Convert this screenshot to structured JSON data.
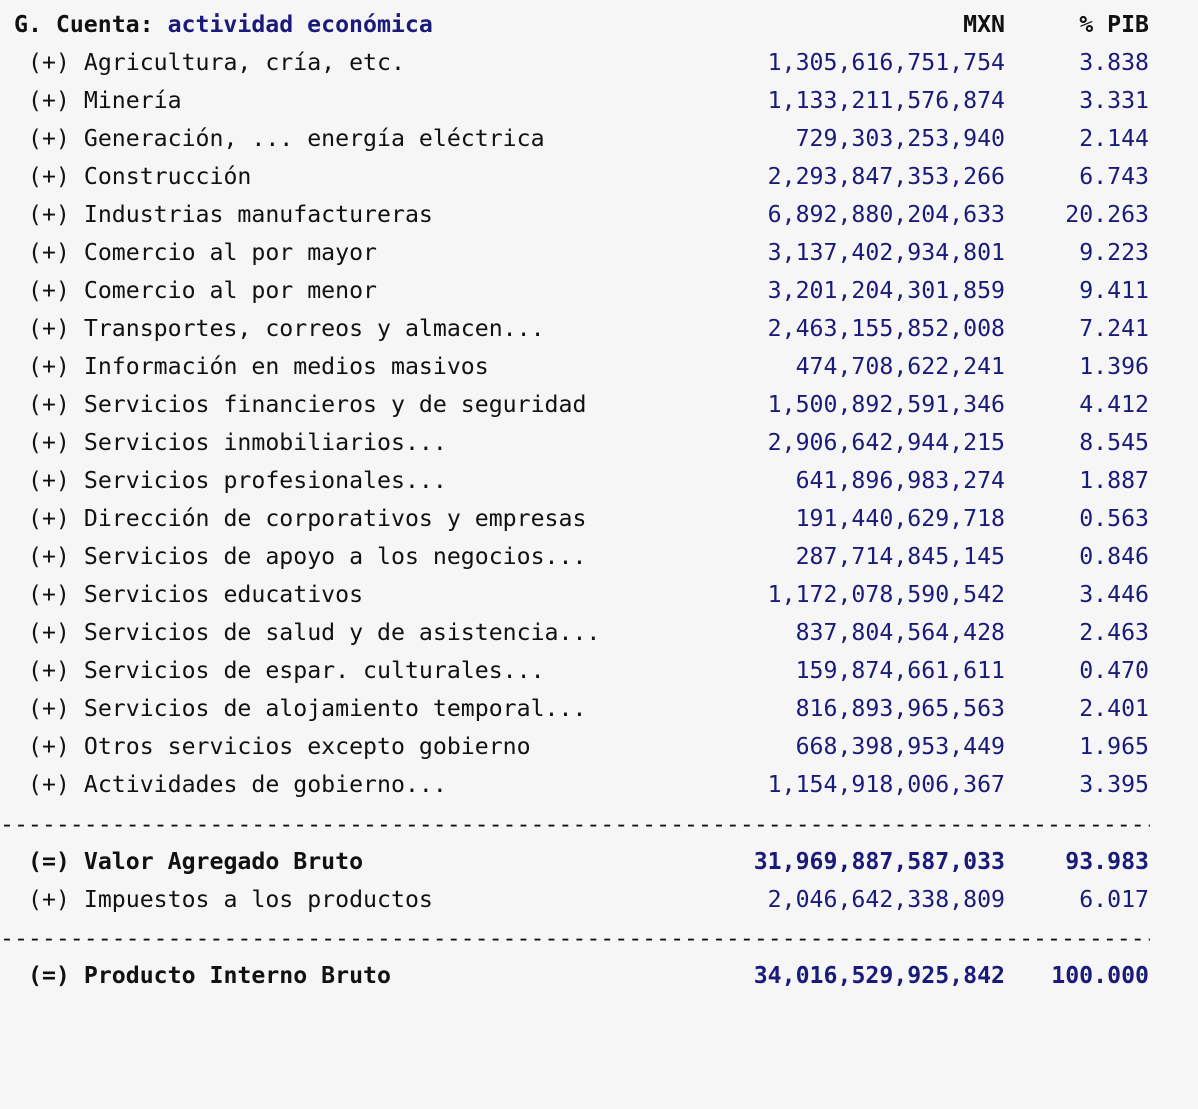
{
  "header": {
    "prefix": "G. Cuenta: ",
    "title": "actividad económica",
    "col_mxn": "MXN",
    "col_pib": "% PIB"
  },
  "rows": [
    {
      "sign": "(+)",
      "label": "Agricultura, cría, etc.",
      "mxn": "1,305,616,751,754",
      "pib": "3.838"
    },
    {
      "sign": "(+)",
      "label": "Minería",
      "mxn": "1,133,211,576,874",
      "pib": "3.331"
    },
    {
      "sign": "(+)",
      "label": "Generación, ... energía eléctrica",
      "mxn": "729,303,253,940",
      "pib": "2.144"
    },
    {
      "sign": "(+)",
      "label": "Construcción",
      "mxn": "2,293,847,353,266",
      "pib": "6.743"
    },
    {
      "sign": "(+)",
      "label": "Industrias manufactureras",
      "mxn": "6,892,880,204,633",
      "pib": "20.263"
    },
    {
      "sign": "(+)",
      "label": "Comercio al por mayor",
      "mxn": "3,137,402,934,801",
      "pib": "9.223"
    },
    {
      "sign": "(+)",
      "label": "Comercio al por menor",
      "mxn": "3,201,204,301,859",
      "pib": "9.411"
    },
    {
      "sign": "(+)",
      "label": "Transportes, correos y almacen...",
      "mxn": "2,463,155,852,008",
      "pib": "7.241"
    },
    {
      "sign": "(+)",
      "label": "Información en medios masivos",
      "mxn": "474,708,622,241",
      "pib": "1.396"
    },
    {
      "sign": "(+)",
      "label": "Servicios financieros y de seguridad",
      "mxn": "1,500,892,591,346",
      "pib": "4.412"
    },
    {
      "sign": "(+)",
      "label": "Servicios inmobiliarios...",
      "mxn": "2,906,642,944,215",
      "pib": "8.545"
    },
    {
      "sign": "(+)",
      "label": "Servicios profesionales...",
      "mxn": "641,896,983,274",
      "pib": "1.887"
    },
    {
      "sign": "(+)",
      "label": "Dirección de corporativos y empresas",
      "mxn": "191,440,629,718",
      "pib": "0.563"
    },
    {
      "sign": "(+)",
      "label": "Servicios de apoyo a los negocios...",
      "mxn": "287,714,845,145",
      "pib": "0.846"
    },
    {
      "sign": "(+)",
      "label": "Servicios educativos",
      "mxn": "1,172,078,590,542",
      "pib": "3.446"
    },
    {
      "sign": "(+)",
      "label": "Servicios de salud y de asistencia...",
      "mxn": "837,804,564,428",
      "pib": "2.463"
    },
    {
      "sign": "(+)",
      "label": "Servicios de espar. culturales...",
      "mxn": "159,874,661,611",
      "pib": "0.470"
    },
    {
      "sign": "(+)",
      "label": "Servicios de alojamiento temporal...",
      "mxn": "816,893,965,563",
      "pib": "2.401"
    },
    {
      "sign": "(+)",
      "label": "Otros servicios excepto gobierno",
      "mxn": "668,398,953,449",
      "pib": "1.965"
    },
    {
      "sign": "(+)",
      "label": "Actividades de gobierno...",
      "mxn": "1,154,918,006,367",
      "pib": "3.395"
    }
  ],
  "subtotal_group": [
    {
      "sign": "(=)",
      "label": "Valor Agregado Bruto",
      "mxn": "31,969,887,587,033",
      "pib": "93.983",
      "bold": true
    },
    {
      "sign": "(+)",
      "label": "Impuestos a los productos",
      "mxn": "2,046,642,338,809",
      "pib": "6.017",
      "bold": false
    }
  ],
  "total": {
    "sign": "(=)",
    "label": "Producto Interno Bruto",
    "mxn": "34,016,529,925,842",
    "pib": "100.000"
  },
  "separator": "----------------------------------------------------------------------------------------------------"
}
